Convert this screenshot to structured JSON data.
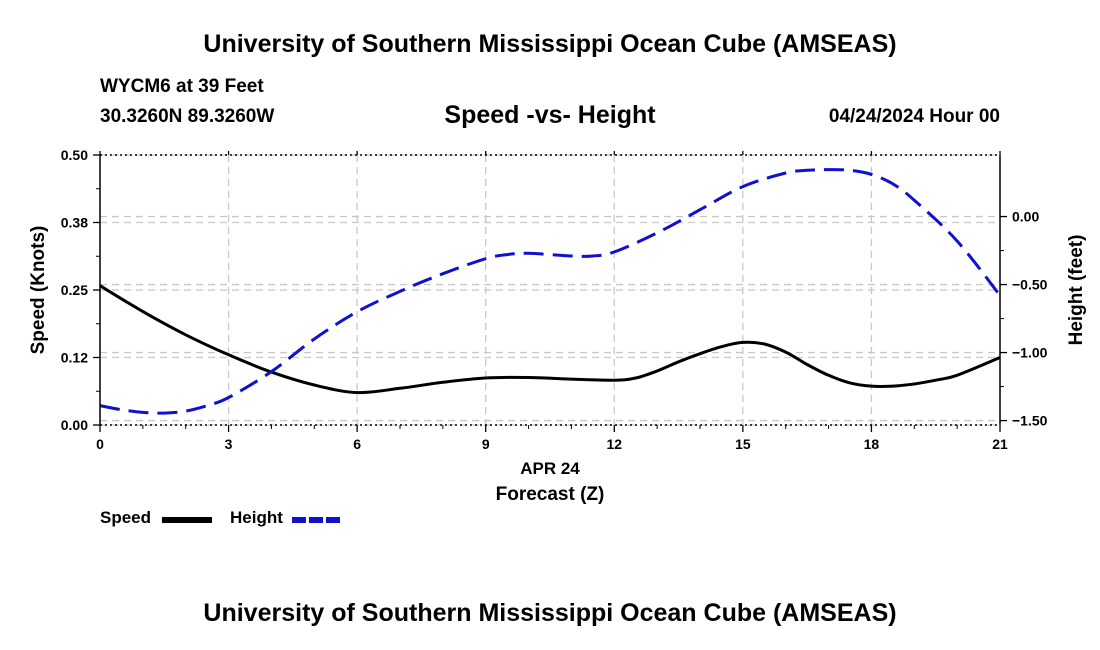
{
  "header": {
    "title": "University of Southern Mississippi Ocean Cube (AMSEAS)",
    "station": "WYCM6 at 39 Feet",
    "coords": "30.3260N  89.3260W",
    "subtitle": "Speed -vs- Height",
    "date": "04/24/2024 Hour 00"
  },
  "footer": {
    "title": "University of Southern Mississippi Ocean Cube (AMSEAS)"
  },
  "chart_data": {
    "type": "line",
    "title": "Speed -vs- Height",
    "xlabel": "Forecast (Z)",
    "xlabel_date": "APR 24",
    "ylabel": "Speed (Knots)",
    "y2label": "Height (feet)",
    "xlim": [
      0,
      21
    ],
    "ylim": [
      0,
      0.5
    ],
    "y2lim": [
      -1.5325,
      0.4525
    ],
    "x_ticks": [
      0,
      3,
      6,
      9,
      12,
      15,
      18,
      21
    ],
    "x_tick_labels": [
      "0",
      "3",
      "6",
      "9",
      "12",
      "15",
      "18",
      "21"
    ],
    "y_ticks": [
      0.0,
      0.125,
      0.25,
      0.375,
      0.5
    ],
    "y_tick_labels": [
      "0.00",
      "0.12",
      "0.25",
      "0.38",
      "0.50"
    ],
    "y2_ticks": [
      -1.5,
      -1.0,
      -0.5,
      0.0
    ],
    "y2_tick_labels": [
      "−1.50",
      "−1.00",
      "−0.50",
      "0.00"
    ],
    "grid": true,
    "series": [
      {
        "name": "Speed",
        "axis": "left",
        "color": "#000000",
        "dash": "solid",
        "x": [
          0,
          1,
          2,
          3,
          4,
          5,
          6,
          7,
          8,
          9,
          10,
          11,
          12,
          12.5,
          13,
          13.5,
          14,
          14.5,
          15,
          15.5,
          16,
          16.5,
          17,
          17.5,
          18,
          18.5,
          19,
          19.5,
          20,
          21
        ],
        "values": [
          0.258,
          0.21,
          0.167,
          0.13,
          0.098,
          0.074,
          0.06,
          0.068,
          0.079,
          0.087,
          0.088,
          0.085,
          0.083,
          0.087,
          0.1,
          0.117,
          0.132,
          0.145,
          0.153,
          0.15,
          0.135,
          0.112,
          0.092,
          0.078,
          0.072,
          0.072,
          0.076,
          0.083,
          0.092,
          0.125
        ]
      },
      {
        "name": "Height",
        "axis": "right",
        "color": "#1010d0",
        "dash": "dashed",
        "x": [
          0,
          0.5,
          1,
          1.5,
          2,
          2.5,
          3,
          4,
          5,
          6,
          7,
          8,
          9,
          9.5,
          10,
          11,
          11.5,
          12,
          13,
          14,
          15,
          16,
          16.5,
          17,
          17.5,
          18,
          18.5,
          19,
          20,
          21
        ],
        "values": [
          -1.39,
          -1.42,
          -1.44,
          -1.445,
          -1.43,
          -1.39,
          -1.33,
          -1.14,
          -0.9,
          -0.7,
          -0.55,
          -0.42,
          -0.31,
          -0.28,
          -0.27,
          -0.29,
          -0.29,
          -0.26,
          -0.12,
          0.05,
          0.22,
          0.32,
          0.34,
          0.345,
          0.34,
          0.31,
          0.24,
          0.12,
          -0.18,
          -0.58
        ]
      }
    ]
  }
}
